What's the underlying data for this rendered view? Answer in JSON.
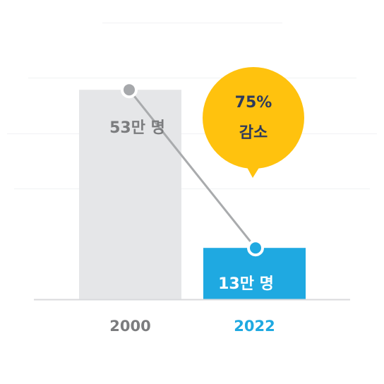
{
  "chart_data": {
    "type": "bar",
    "categories": [
      "2000",
      "2022"
    ],
    "values": [
      53,
      13
    ],
    "value_labels": [
      "53만 명",
      "13만 명"
    ],
    "ylim": [
      0,
      70
    ],
    "grid": true,
    "connector": true,
    "callout": {
      "line1": "75%",
      "line2": "감소"
    }
  },
  "colors": {
    "bar_2000": "#e5e6e8",
    "bar_2022": "#1fa9e1",
    "label_2000": "#7b7c7e",
    "label_2022": "#ffffff",
    "tick_2000": "#7b7c7e",
    "tick_2022": "#1fa9e1",
    "marker_2000": "#a6a8ab",
    "marker_2022": "#1fa9e1",
    "connector": "#a9abad",
    "callout_fill": "#ffc20e",
    "callout_text": "#2e3a5c",
    "grid": "#f2f3f5",
    "baseline": "#d9dadc"
  }
}
